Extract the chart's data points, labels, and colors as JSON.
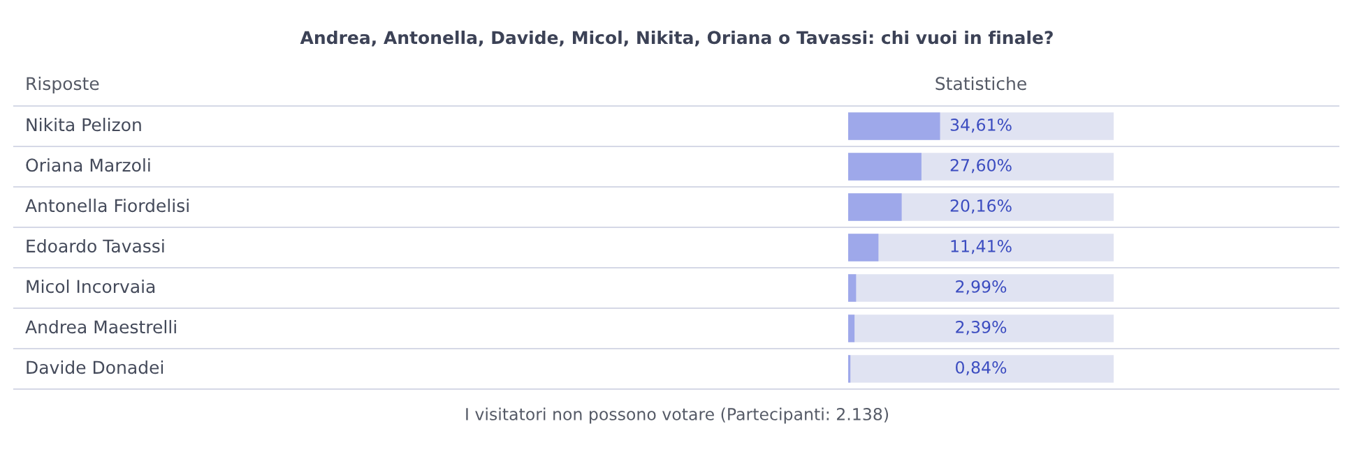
{
  "chart_data": {
    "type": "bar",
    "orientation": "horizontal",
    "title": "Andrea, Antonella, Davide, Micol, Nikita, Oriana o Tavassi: chi vuoi in finale?",
    "ylabel": "Risposte",
    "xlabel": "Statistiche",
    "categories": [
      "Nikita Pelizon",
      "Oriana Marzoli",
      "Antonella Fiordelisi",
      "Edoardo Tavassi",
      "Micol Incorvaia",
      "Andrea Maestrelli",
      "Davide Donadei"
    ],
    "values": [
      34.61,
      27.6,
      20.16,
      11.41,
      2.99,
      2.39,
      0.84
    ],
    "value_labels": [
      "34,61%",
      "27,60%",
      "20,16%",
      "11,41%",
      "2,99%",
      "2,39%",
      "0,84%"
    ],
    "color": "#9ea8ea",
    "xlim": [
      0,
      100
    ],
    "annotations": [
      "I visitatori non possono votare (Partecipanti: 2.138)"
    ]
  }
}
